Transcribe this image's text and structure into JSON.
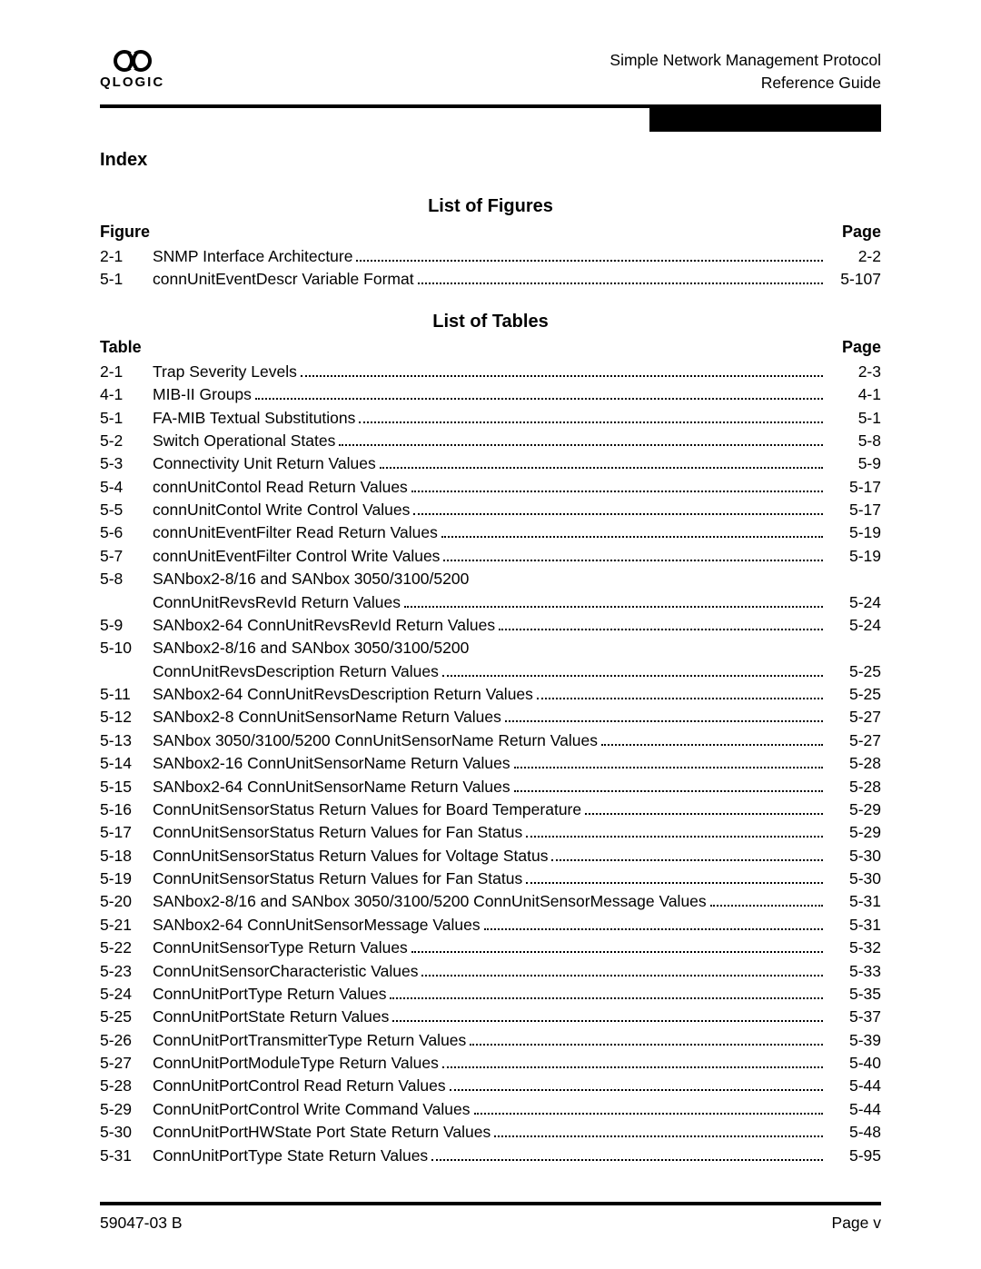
{
  "header": {
    "line1": "Simple Network Management Protocol",
    "line2": "Reference Guide",
    "logo_text": "QLOGIC"
  },
  "index_label": "Index",
  "figures": {
    "heading": "List of Figures",
    "col_left": "Figure",
    "col_right": "Page",
    "entries": [
      {
        "num": "2-1",
        "label": "SNMP Interface Architecture",
        "page": "2-2"
      },
      {
        "num": "5-1",
        "label": "connUnitEventDescr Variable Format",
        "page": "5-107"
      }
    ]
  },
  "tables": {
    "heading": "List of Tables",
    "col_left": "Table",
    "col_right": "Page",
    "entries": [
      {
        "num": "2-1",
        "label": "Trap Severity Levels",
        "page": "2-3"
      },
      {
        "num": "4-1",
        "label": "MIB-II Groups",
        "page": "4-1"
      },
      {
        "num": "5-1",
        "label": "FA-MIB Textual Substitutions",
        "page": "5-1"
      },
      {
        "num": "5-2",
        "label": "Switch Operational States",
        "page": "5-8"
      },
      {
        "num": "5-3",
        "label": "Connectivity Unit Return Values",
        "page": "5-9"
      },
      {
        "num": "5-4",
        "label": "connUnitContol Read Return Values",
        "page": "5-17"
      },
      {
        "num": "5-5",
        "label": "connUnitContol Write Control Values",
        "page": "5-17"
      },
      {
        "num": "5-6",
        "label": "connUnitEventFilter Read Return Values",
        "page": "5-19"
      },
      {
        "num": "5-7",
        "label": "connUnitEventFilter Control Write Values",
        "page": "5-19"
      },
      {
        "num": "5-8",
        "label": "SANbox2-8/16 and SANbox 3050/3100/5200",
        "page": "",
        "nodots": true
      },
      {
        "num": "",
        "label": "ConnUnitRevsRevId Return Values",
        "page": "5-24",
        "indent": true
      },
      {
        "num": "5-9",
        "label": "SANbox2-64 ConnUnitRevsRevId Return Values",
        "page": "5-24"
      },
      {
        "num": "5-10",
        "label": "SANbox2-8/16 and SANbox 3050/3100/5200",
        "page": "",
        "nodots": true
      },
      {
        "num": "",
        "label": "ConnUnitRevsDescription Return Values",
        "page": "5-25",
        "indent": true
      },
      {
        "num": "5-11",
        "label": "SANbox2-64 ConnUnitRevsDescription Return Values",
        "page": "5-25"
      },
      {
        "num": "5-12",
        "label": "SANbox2-8 ConnUnitSensorName Return Values",
        "page": "5-27"
      },
      {
        "num": "5-13",
        "label": "SANbox 3050/3100/5200 ConnUnitSensorName Return Values",
        "page": "5-27"
      },
      {
        "num": "5-14",
        "label": "SANbox2-16 ConnUnitSensorName Return Values",
        "page": "5-28"
      },
      {
        "num": "5-15",
        "label": "SANbox2-64 ConnUnitSensorName Return Values",
        "page": "5-28"
      },
      {
        "num": "5-16",
        "label": "ConnUnitSensorStatus Return Values for Board Temperature",
        "page": "5-29"
      },
      {
        "num": "5-17",
        "label": "ConnUnitSensorStatus Return Values for Fan Status",
        "page": "5-29"
      },
      {
        "num": "5-18",
        "label": "ConnUnitSensorStatus Return Values for Voltage Status",
        "page": "5-30"
      },
      {
        "num": "5-19",
        "label": "ConnUnitSensorStatus Return Values for Fan Status",
        "page": "5-30"
      },
      {
        "num": "5-20",
        "label": "SANbox2-8/16 and SANbox 3050/3100/5200 ConnUnitSensorMessage Values",
        "page": "5-31"
      },
      {
        "num": "5-21",
        "label": "SANbox2-64 ConnUnitSensorMessage Values",
        "page": "5-31"
      },
      {
        "num": "5-22",
        "label": "ConnUnitSensorType Return Values",
        "page": "5-32"
      },
      {
        "num": "5-23",
        "label": "ConnUnitSensorCharacteristic Values",
        "page": "5-33"
      },
      {
        "num": "5-24",
        "label": "ConnUnitPortType Return Values",
        "page": "5-35"
      },
      {
        "num": "5-25",
        "label": "ConnUnitPortState Return Values",
        "page": "5-37"
      },
      {
        "num": "5-26",
        "label": "ConnUnitPortTransmitterType Return Values",
        "page": "5-39"
      },
      {
        "num": "5-27",
        "label": "ConnUnitPortModuleType Return Values",
        "page": "5-40"
      },
      {
        "num": "5-28",
        "label": "ConnUnitPortControl Read Return Values",
        "page": "5-44"
      },
      {
        "num": "5-29",
        "label": "ConnUnitPortControl Write Command Values",
        "page": "5-44"
      },
      {
        "num": "5-30",
        "label": "ConnUnitPortHWState Port State Return Values",
        "page": "5-48"
      },
      {
        "num": "5-31",
        "label": "ConnUnitPortType State Return Values",
        "page": "5-95"
      }
    ]
  },
  "footer": {
    "left": "59047-03  B",
    "right": "Page v"
  }
}
